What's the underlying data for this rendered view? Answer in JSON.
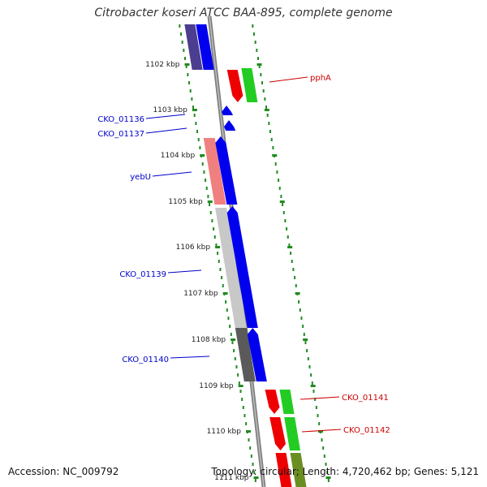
{
  "title": "Citrobacter koseri ATCC BAA-895, complete genome",
  "accession_text": "Accession: NC_009792",
  "topology_text": "Topology: circular; Length: 4,720,462 bp; Genes: 5,121",
  "colors": {
    "ruler": "#228b22",
    "backbone": "#808080",
    "forward_label": "#0000cc",
    "reverse_label": "#cc0000",
    "cds_blue": "#0000ee",
    "cds_red": "#ee0000",
    "cds_green": "#22cc22"
  },
  "ticks": [
    {
      "label": "1102 kbp"
    },
    {
      "label": "1103 kbp"
    },
    {
      "label": "1104 kbp"
    },
    {
      "label": "1105 kbp"
    },
    {
      "label": "1106 kbp"
    },
    {
      "label": "1107 kbp"
    },
    {
      "label": "1108 kbp"
    },
    {
      "label": "1109 kbp"
    },
    {
      "label": "1110 kbp"
    },
    {
      "label": "1111 kbp"
    }
  ],
  "gene_labels": {
    "left": [
      "CKO_01136",
      "CKO_01137",
      "yebU",
      "CKO_01139",
      "CKO_01140"
    ],
    "right": [
      "pphA",
      "CKO_01141",
      "CKO_01142"
    ]
  }
}
